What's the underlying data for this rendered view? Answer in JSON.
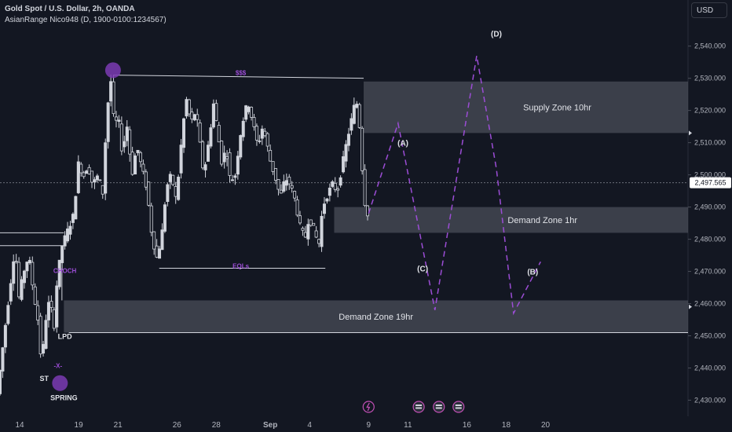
{
  "header": {
    "title": "Gold Spot / U.S. Dollar, 2h, OANDA",
    "indicator": "AsianRange Nico948 (D, 1900-0100:1234567)",
    "currency": "USD"
  },
  "colors": {
    "background": "#131722",
    "candle": "#d1d4dc",
    "zone": "#5d606b",
    "purple": "#9c4dd6",
    "line": "#d1d4dc",
    "grid_dashed": "#6b6f7a",
    "axis_text": "#b2b5be"
  },
  "chart_data": {
    "type": "candlestick",
    "symbol": "XAUUSD",
    "timeframe": "2h",
    "y_axis": {
      "ticks": [
        2430,
        2440,
        2450,
        2460,
        2470,
        2480,
        2490,
        2500,
        2510,
        2520,
        2530,
        2540
      ],
      "tick_labels": [
        "2,430.000",
        "2,440.000",
        "2,450.000",
        "2,460.000",
        "2,470.000",
        "2,480.000",
        "2,490.000",
        "2,500.000",
        "2,510.000",
        "2,520.000",
        "2,530.000",
        "2,540.000"
      ],
      "range": [
        2425,
        2547
      ],
      "current_price": 2497.565,
      "current_price_label": "2,497.565"
    },
    "x_axis": {
      "range": [
        0,
        140
      ],
      "ticks": [
        {
          "x": 4,
          "label": "14"
        },
        {
          "x": 16,
          "label": "19"
        },
        {
          "x": 24,
          "label": "21"
        },
        {
          "x": 36,
          "label": "26"
        },
        {
          "x": 44,
          "label": "28"
        },
        {
          "x": 55,
          "label": "Sep"
        },
        {
          "x": 63,
          "label": "4"
        },
        {
          "x": 75,
          "label": "9"
        },
        {
          "x": 83,
          "label": "11"
        },
        {
          "x": 95,
          "label": "16"
        },
        {
          "x": 103,
          "label": "18"
        },
        {
          "x": 111,
          "label": "20"
        }
      ]
    },
    "price_path": [
      [
        0.0,
        2432
      ],
      [
        1.0,
        2445
      ],
      [
        2.0,
        2458
      ],
      [
        3.0,
        2470
      ],
      [
        3.6,
        2478
      ],
      [
        4.4,
        2462
      ],
      [
        5.4,
        2470
      ],
      [
        6.4,
        2475
      ],
      [
        7.4,
        2463
      ],
      [
        8.2,
        2456
      ],
      [
        9.0,
        2441
      ],
      [
        10.0,
        2457
      ],
      [
        10.8,
        2462
      ],
      [
        11.4,
        2450
      ],
      [
        12.2,
        2468
      ],
      [
        13.2,
        2478
      ],
      [
        14.4,
        2483
      ],
      [
        15.4,
        2487
      ],
      [
        16.0,
        2495
      ],
      [
        16.6,
        2505
      ],
      [
        17.4,
        2499
      ],
      [
        18.4,
        2503
      ],
      [
        19.4,
        2497
      ],
      [
        20.6,
        2500
      ],
      [
        21.4,
        2493
      ],
      [
        22.2,
        2516
      ],
      [
        23.0,
        2531
      ],
      [
        23.8,
        2515
      ],
      [
        24.6,
        2518
      ],
      [
        25.4,
        2507
      ],
      [
        26.4,
        2515
      ],
      [
        27.4,
        2500
      ],
      [
        28.4,
        2509
      ],
      [
        29.4,
        2502
      ],
      [
        30.4,
        2496
      ],
      [
        31.4,
        2482
      ],
      [
        32.4,
        2474
      ],
      [
        33.4,
        2480
      ],
      [
        34.4,
        2496
      ],
      [
        35.4,
        2500
      ],
      [
        36.4,
        2492
      ],
      [
        37.4,
        2509
      ],
      [
        38.4,
        2524
      ],
      [
        39.4,
        2516
      ],
      [
        40.4,
        2520
      ],
      [
        41.2,
        2510
      ],
      [
        42.0,
        2500
      ],
      [
        43.0,
        2510
      ],
      [
        44.0,
        2522
      ],
      [
        44.8,
        2514
      ],
      [
        45.6,
        2504
      ],
      [
        46.6,
        2508
      ],
      [
        47.4,
        2498
      ],
      [
        48.4,
        2500
      ],
      [
        49.4,
        2512
      ],
      [
        50.4,
        2520
      ],
      [
        51.2,
        2522
      ],
      [
        52.0,
        2516
      ],
      [
        53.0,
        2509
      ],
      [
        54.0,
        2515
      ],
      [
        54.8,
        2510
      ],
      [
        55.6,
        2504
      ],
      [
        56.6,
        2499
      ],
      [
        57.6,
        2493
      ],
      [
        58.6,
        2499
      ],
      [
        59.6,
        2497
      ],
      [
        60.6,
        2492
      ],
      [
        61.6,
        2484
      ],
      [
        62.6,
        2480
      ],
      [
        63.4,
        2487
      ],
      [
        64.4,
        2483
      ],
      [
        65.4,
        2478
      ],
      [
        66.2,
        2490
      ],
      [
        67.2,
        2494
      ],
      [
        68.2,
        2497
      ],
      [
        69.2,
        2495
      ],
      [
        70.2,
        2503
      ],
      [
        71.2,
        2511
      ],
      [
        72.2,
        2518
      ],
      [
        73.0,
        2524
      ],
      [
        73.8,
        2514
      ],
      [
        74.4,
        2498
      ],
      [
        75.0,
        2488
      ]
    ],
    "projection_path": {
      "points": [
        [
          75.0,
          2488
        ],
        [
          81.0,
          2516
        ],
        [
          88.5,
          2458
        ],
        [
          97.0,
          2537
        ],
        [
          101.0,
          2502
        ],
        [
          104.5,
          2457
        ],
        [
          110.0,
          2473
        ]
      ],
      "labels": [
        {
          "x": 82.0,
          "y": 2509,
          "text": "(A)"
        },
        {
          "x": 86.0,
          "y": 2470,
          "text": "(C)"
        },
        {
          "x": 101.0,
          "y": 2543,
          "text": "(D)"
        },
        {
          "x": 108.4,
          "y": 2469,
          "text": "(B)"
        }
      ]
    },
    "zones": [
      {
        "name": "Supply Zone 10hr",
        "x0": 74.0,
        "y0": 2513,
        "y1": 2529
      },
      {
        "name": "Demand Zone 1hr",
        "x0": 68.0,
        "y0": 2482,
        "y1": 2490
      },
      {
        "name": "Demand Zone 19hr",
        "x0": 13.0,
        "y0": 2451,
        "y1": 2461
      }
    ],
    "lines": [
      {
        "x0": 23.0,
        "y0": 2531,
        "x1": 74.0,
        "y1": 2530
      },
      {
        "x0": 14.0,
        "y0": 2451,
        "x1": 140.0,
        "y1": 2451
      },
      {
        "x0": 0,
        "y0": 2482,
        "x1": 13.0,
        "y1": 2482
      },
      {
        "x0": 0,
        "y0": 2478,
        "x1": 13.0,
        "y1": 2478
      },
      {
        "x0": 32.4,
        "y0": 2471,
        "x1": 66.2,
        "y1": 2471
      },
      {
        "x0": 12.6,
        "y0": 2461,
        "x1": 12.6,
        "y1": 2470
      }
    ],
    "annotations": [
      {
        "x": 49.0,
        "y": 2531,
        "text": "$$$",
        "color": "purple"
      },
      {
        "x": 49.0,
        "y": 2471,
        "text": "EQLs",
        "color": "purple"
      },
      {
        "x": 13.2,
        "y": 2469.5,
        "text": "CHOCH",
        "color": "purple"
      },
      {
        "x": 11.8,
        "y": 2440,
        "text": "-X-",
        "color": "purple"
      },
      {
        "x": 9.0,
        "y": 2436,
        "text": "ST",
        "color": "white"
      },
      {
        "x": 13.2,
        "y": 2449,
        "text": "LPD",
        "color": "white"
      },
      {
        "x": 13.0,
        "y": 2430,
        "text": "SPRING",
        "color": "white"
      }
    ],
    "markers": [
      {
        "x": 23.0,
        "y": 2532.5,
        "kind": "circle"
      },
      {
        "x": 12.2,
        "y": 2435.3,
        "kind": "circle"
      }
    ],
    "bottom_icons": [
      "lightning-icon",
      "flag-icon",
      "flag-icon",
      "flag-icon"
    ]
  }
}
